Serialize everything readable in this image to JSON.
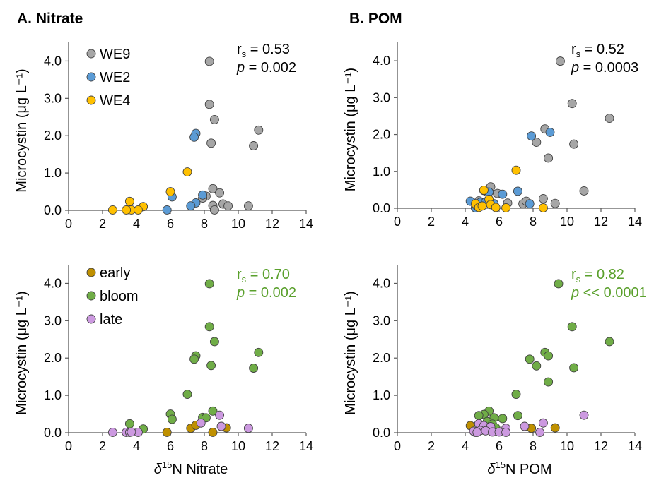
{
  "panel_titles": {
    "a": "A. Nitrate",
    "b": "B. POM"
  },
  "colors": {
    "gray": "#a6a6a6",
    "blue": "#5b9bd5",
    "yellow": "#ffc000",
    "brown": "#bf9000",
    "green": "#70ad47",
    "purple": "#cc99e0",
    "stat_green": "#5aa02c"
  },
  "chart_data": [
    {
      "id": "nitrate-site",
      "type": "scatter",
      "xlabel_delta": "δ",
      "xlabel_sup": "15",
      "xlabel_rest": "N Nitrate",
      "ylabel": "Microcystin (μg L⁻¹)",
      "xlim": [
        0,
        14
      ],
      "ylim": [
        0,
        4.5
      ],
      "xticks": [
        0,
        2,
        4,
        6,
        8,
        10,
        12,
        14
      ],
      "xtick_labels": [
        "0",
        "2",
        "4",
        "6",
        "8",
        "10",
        "12",
        "14"
      ],
      "yticks": [
        0,
        1,
        2,
        3,
        4
      ],
      "ytick_labels": [
        "0.0",
        "1.0",
        "2.0",
        "3.0",
        "4.0"
      ],
      "grid": false,
      "legend_position": "top-left",
      "stats": {
        "r": "r",
        "r_sub": "s",
        "r_value": " = 0.53",
        "p": "p",
        "p_value": " = 0.002",
        "color": "black"
      },
      "series": [
        {
          "name": "WE9",
          "color": "#a6a6a6",
          "points": [
            [
              8.3,
              3.99
            ],
            [
              8.3,
              2.84
            ],
            [
              8.6,
              2.43
            ],
            [
              8.4,
              1.8
            ],
            [
              11.2,
              2.15
            ],
            [
              10.9,
              1.73
            ],
            [
              8.5,
              0.58
            ],
            [
              8.9,
              0.47
            ],
            [
              8.1,
              0.38
            ],
            [
              7.9,
              0.33
            ],
            [
              9.1,
              0.17
            ],
            [
              9.4,
              0.12
            ],
            [
              10.6,
              0.12
            ],
            [
              8.5,
              0.13
            ],
            [
              8.6,
              0.01
            ]
          ]
        },
        {
          "name": "WE2",
          "color": "#5b9bd5",
          "points": [
            [
              7.5,
              2.06
            ],
            [
              7.4,
              1.96
            ],
            [
              7.9,
              0.41
            ],
            [
              6.1,
              0.36
            ],
            [
              7.5,
              0.2
            ],
            [
              7.2,
              0.12
            ],
            [
              5.8,
              0.01
            ]
          ]
        },
        {
          "name": "WE4",
          "color": "#ffc000",
          "points": [
            [
              7.0,
              1.03
            ],
            [
              6.0,
              0.5
            ],
            [
              3.6,
              0.24
            ],
            [
              4.4,
              0.1
            ],
            [
              3.5,
              0.02
            ],
            [
              3.7,
              0.01
            ],
            [
              4.1,
              0.01
            ],
            [
              2.6,
              0.01
            ],
            [
              3.4,
              0.01
            ]
          ]
        }
      ]
    },
    {
      "id": "pom-site",
      "type": "scatter",
      "xlabel_delta": "δ",
      "xlabel_sup": "15",
      "xlabel_rest": "N POM",
      "ylabel": "Microcystin (μg L⁻¹)",
      "xlim": [
        0,
        14
      ],
      "ylim": [
        0,
        4.5
      ],
      "xticks": [
        0,
        2,
        4,
        6,
        8,
        10,
        12,
        14
      ],
      "xtick_labels": [
        "0",
        "2",
        "4",
        "6",
        "8",
        "10",
        "12",
        "14"
      ],
      "yticks": [
        0,
        1,
        2,
        3,
        4
      ],
      "ytick_labels": [
        "0.0",
        "1.0",
        "2.0",
        "3.0",
        "4.0"
      ],
      "grid": false,
      "stats": {
        "r": "r",
        "r_sub": "s",
        "r_value": " = 0.52",
        "p": "p",
        "p_value": " = 0.0003",
        "color": "black"
      },
      "series": [
        {
          "name": "",
          "color": "#a6a6a6",
          "points": [
            [
              9.6,
              3.99
            ],
            [
              10.3,
              2.84
            ],
            [
              12.5,
              2.44
            ],
            [
              8.7,
              2.15
            ],
            [
              8.2,
              1.79
            ],
            [
              10.4,
              1.74
            ],
            [
              8.9,
              1.36
            ],
            [
              11.0,
              0.47
            ],
            [
              5.5,
              0.58
            ],
            [
              5.3,
              0.44
            ],
            [
              5.9,
              0.4
            ],
            [
              6.5,
              0.14
            ],
            [
              7.4,
              0.12
            ],
            [
              7.6,
              0.19
            ],
            [
              8.6,
              0.26
            ],
            [
              9.3,
              0.13
            ],
            [
              4.8,
              0.2
            ]
          ]
        },
        {
          "name": "",
          "color": "#5b9bd5",
          "points": [
            [
              7.9,
              1.96
            ],
            [
              9.0,
              2.06
            ],
            [
              5.1,
              0.48
            ],
            [
              5.4,
              0.44
            ],
            [
              6.2,
              0.38
            ],
            [
              7.1,
              0.46
            ],
            [
              4.3,
              0.19
            ],
            [
              4.6,
              0.01
            ],
            [
              4.9,
              0.16
            ],
            [
              5.2,
              0.17
            ],
            [
              5.7,
              0.12
            ],
            [
              7.8,
              0.12
            ],
            [
              4.7,
              0.06
            ]
          ]
        },
        {
          "name": "",
          "color": "#ffc000",
          "points": [
            [
              7.0,
              1.03
            ],
            [
              5.1,
              0.49
            ],
            [
              5.4,
              0.24
            ],
            [
              4.6,
              0.12
            ],
            [
              4.8,
              0.02
            ],
            [
              5.0,
              0.06
            ],
            [
              5.5,
              0.1
            ],
            [
              5.8,
              0.02
            ],
            [
              6.4,
              0.01
            ],
            [
              8.6,
              0.01
            ]
          ]
        }
      ]
    },
    {
      "id": "nitrate-season",
      "type": "scatter",
      "xlabel_delta": "δ",
      "xlabel_sup": "15",
      "xlabel_rest": "N Nitrate",
      "ylabel": "Microcystin (μg L⁻¹)",
      "xlim": [
        0,
        14
      ],
      "ylim": [
        0,
        4.5
      ],
      "xticks": [
        0,
        2,
        4,
        6,
        8,
        10,
        12,
        14
      ],
      "xtick_labels": [
        "0",
        "2",
        "4",
        "6",
        "8",
        "10",
        "12",
        "14"
      ],
      "yticks": [
        0,
        1,
        2,
        3,
        4
      ],
      "ytick_labels": [
        "0.0",
        "1.0",
        "2.0",
        "3.0",
        "4.0"
      ],
      "grid": false,
      "legend_position": "top-left",
      "stats": {
        "r": "r",
        "r_sub": "s",
        "r_value": " = 0.70",
        "p": "p",
        "p_value": " = 0.002",
        "color": "#5aa02c"
      },
      "series": [
        {
          "name": "early",
          "color": "#bf9000",
          "points": [
            [
              7.2,
              0.12
            ],
            [
              7.5,
              0.2
            ],
            [
              9.3,
              0.13
            ],
            [
              5.8,
              0.01
            ],
            [
              8.5,
              0.01
            ]
          ]
        },
        {
          "name": "bloom",
          "color": "#70ad47",
          "points": [
            [
              8.3,
              3.99
            ],
            [
              8.3,
              2.84
            ],
            [
              8.6,
              2.44
            ],
            [
              8.4,
              1.8
            ],
            [
              7.5,
              2.06
            ],
            [
              7.4,
              1.97
            ],
            [
              11.2,
              2.15
            ],
            [
              10.9,
              1.73
            ],
            [
              7.0,
              1.03
            ],
            [
              8.5,
              0.58
            ],
            [
              6.0,
              0.5
            ],
            [
              7.9,
              0.41
            ],
            [
              6.1,
              0.36
            ],
            [
              3.6,
              0.24
            ],
            [
              4.4,
              0.1
            ],
            [
              8.1,
              0.4
            ]
          ]
        },
        {
          "name": "late",
          "color": "#cc99e0",
          "points": [
            [
              8.9,
              0.47
            ],
            [
              7.8,
              0.26
            ],
            [
              9.0,
              0.17
            ],
            [
              10.6,
              0.12
            ],
            [
              2.6,
              0.01
            ],
            [
              3.4,
              0.01
            ],
            [
              3.6,
              0.01
            ],
            [
              4.1,
              0.01
            ],
            [
              3.7,
              0.02
            ]
          ]
        }
      ]
    },
    {
      "id": "pom-season",
      "type": "scatter",
      "xlabel_delta": "δ",
      "xlabel_sup": "15",
      "xlabel_rest": "N POM",
      "ylabel": "Microcystin (μg L⁻¹)",
      "xlim": [
        0,
        14
      ],
      "ylim": [
        0,
        4.5
      ],
      "xticks": [
        0,
        2,
        4,
        6,
        8,
        10,
        12,
        14
      ],
      "xtick_labels": [
        "0",
        "2",
        "4",
        "6",
        "8",
        "10",
        "12",
        "14"
      ],
      "yticks": [
        0,
        1,
        2,
        3,
        4
      ],
      "ytick_labels": [
        "0.0",
        "1.0",
        "2.0",
        "3.0",
        "4.0"
      ],
      "grid": false,
      "stats": {
        "r": "r",
        "r_sub": "s",
        "r_value": " = 0.82",
        "p": "p",
        "p_value": " << 0.0001",
        "color": "#5aa02c"
      },
      "series": [
        {
          "name": "",
          "color": "#bf9000",
          "points": [
            [
              4.3,
              0.19
            ],
            [
              7.9,
              0.12
            ],
            [
              9.3,
              0.13
            ],
            [
              4.6,
              0.01
            ]
          ]
        },
        {
          "name": "",
          "color": "#70ad47",
          "points": [
            [
              9.5,
              3.99
            ],
            [
              10.3,
              2.84
            ],
            [
              12.5,
              2.44
            ],
            [
              8.7,
              2.15
            ],
            [
              8.9,
              2.06
            ],
            [
              7.8,
              1.97
            ],
            [
              8.2,
              1.79
            ],
            [
              10.4,
              1.74
            ],
            [
              8.9,
              1.36
            ],
            [
              7.0,
              1.03
            ],
            [
              5.4,
              0.58
            ],
            [
              5.1,
              0.49
            ],
            [
              4.8,
              0.46
            ],
            [
              5.7,
              0.4
            ],
            [
              6.2,
              0.38
            ],
            [
              7.1,
              0.46
            ],
            [
              5.3,
              0.3
            ],
            [
              5.6,
              0.23
            ],
            [
              5.8,
              0.13
            ]
          ]
        },
        {
          "name": "",
          "color": "#cc99e0",
          "points": [
            [
              11.0,
              0.47
            ],
            [
              8.6,
              0.26
            ],
            [
              4.8,
              0.24
            ],
            [
              5.1,
              0.19
            ],
            [
              5.5,
              0.16
            ],
            [
              7.5,
              0.17
            ],
            [
              6.4,
              0.12
            ],
            [
              4.5,
              0.04
            ],
            [
              4.9,
              0.06
            ],
            [
              5.2,
              0.05
            ],
            [
              5.6,
              0.02
            ],
            [
              6.0,
              0.02
            ],
            [
              6.4,
              0.01
            ],
            [
              8.4,
              0.01
            ],
            [
              4.7,
              0.01
            ]
          ]
        }
      ]
    }
  ]
}
